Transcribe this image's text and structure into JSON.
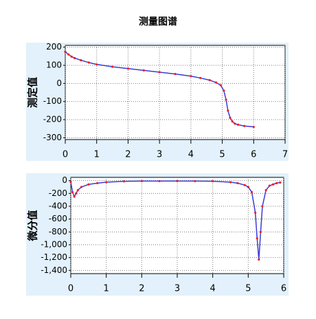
{
  "title": "测量图谱",
  "chart_data": [
    {
      "type": "line",
      "ylabel": "测定值",
      "grid": true,
      "xlim": [
        0,
        7
      ],
      "xticks": [
        0,
        1,
        2,
        3,
        4,
        5,
        6,
        7
      ],
      "ylim": [
        -310,
        210
      ],
      "yticks": [
        200,
        100,
        0,
        -100,
        -200,
        -300
      ],
      "x": [
        0,
        0.1,
        0.2,
        0.3,
        0.5,
        0.75,
        1,
        1.5,
        2,
        2.5,
        3,
        3.5,
        4,
        4.3,
        4.6,
        4.8,
        4.95,
        5.05,
        5.12,
        5.18,
        5.25,
        5.32,
        5.4,
        5.5,
        5.7,
        6
      ],
      "series": [
        {
          "color": "#3a3ad8",
          "marker_color": "#e8202a",
          "values": [
            175,
            160,
            148,
            140,
            128,
            115,
            105,
            92,
            82,
            72,
            62,
            52,
            40,
            30,
            18,
            5,
            -10,
            -40,
            -90,
            -150,
            -190,
            -210,
            -222,
            -228,
            -235,
            -240
          ]
        }
      ]
    },
    {
      "type": "line",
      "ylabel": "微分值",
      "grid": true,
      "xlim": [
        0,
        6
      ],
      "xticks": [
        0,
        1,
        2,
        3,
        4,
        5,
        6
      ],
      "ylim": [
        -1450,
        50
      ],
      "yticks": [
        0,
        -200,
        -400,
        -600,
        -800,
        {
          "value": -1000,
          "label": "-1,000"
        },
        {
          "value": -1200,
          "label": "-1,200"
        },
        {
          "value": -1400,
          "label": "-1,400"
        }
      ],
      "x": [
        0,
        0.05,
        0.1,
        0.15,
        0.2,
        0.3,
        0.5,
        0.75,
        1,
        1.5,
        2,
        2.5,
        3,
        3.5,
        4,
        4.5,
        4.7,
        4.9,
        5.0,
        5.1,
        5.2,
        5.25,
        5.3,
        5.35,
        5.4,
        5.5,
        5.6,
        5.7,
        5.8,
        5.9
      ],
      "series": [
        {
          "color": "#3a3ad8",
          "marker_color": "#e8202a",
          "values": [
            -20,
            -180,
            -250,
            -200,
            -150,
            -100,
            -60,
            -40,
            -25,
            -12,
            -8,
            -8,
            -8,
            -8,
            -10,
            -25,
            -40,
            -70,
            -100,
            -180,
            -500,
            -900,
            -1230,
            -800,
            -400,
            -150,
            -80,
            -60,
            -40,
            -30
          ]
        }
      ]
    }
  ]
}
